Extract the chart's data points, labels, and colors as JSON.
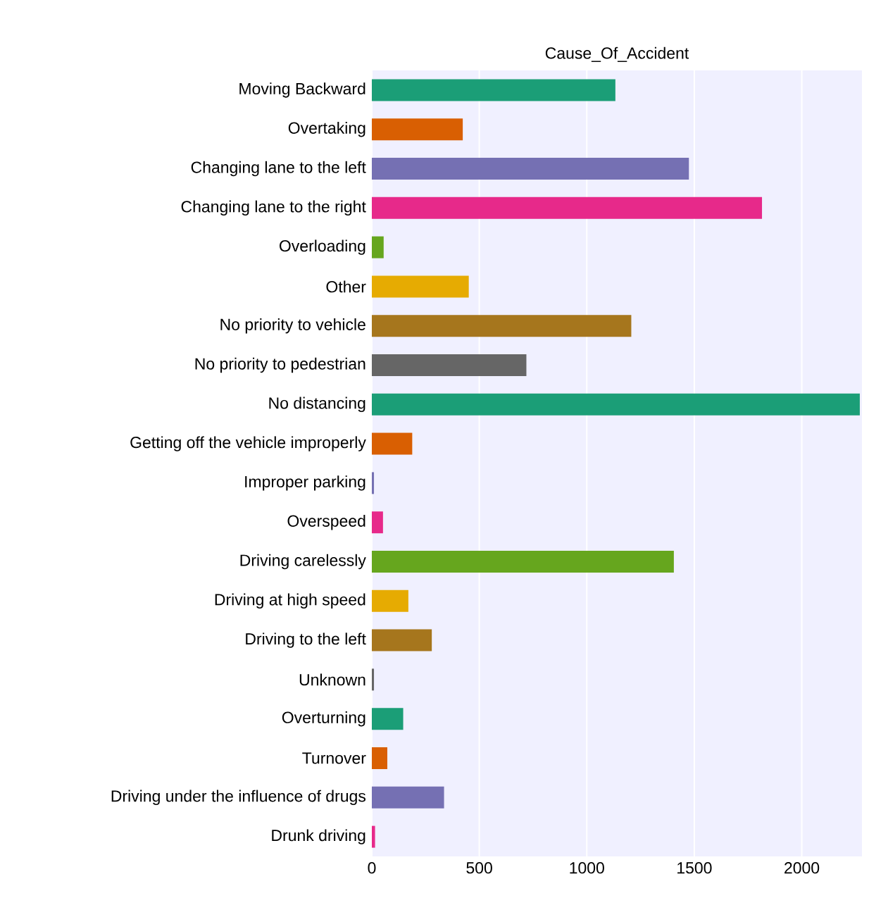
{
  "chart_data": {
    "type": "bar",
    "orientation": "horizontal",
    "title": "Cause_Of_Accident",
    "categories": [
      "Moving Backward",
      "Overtaking",
      "Changing lane to the left",
      "Changing lane to the right",
      "Overloading",
      "Other",
      "No priority to vehicle",
      "No priority to pedestrian",
      "No distancing",
      "Getting off the vehicle improperly",
      "Improper parking",
      "Overspeed",
      "Driving carelessly",
      "Driving at high speed",
      "Driving to the left",
      "Unknown",
      "Overturning",
      "Turnover",
      "Driving under the influence of drugs",
      "Drunk driving"
    ],
    "values": [
      1133,
      423,
      1475,
      1815,
      55,
      451,
      1207,
      719,
      2270,
      188,
      10,
      52,
      1405,
      170,
      279,
      10,
      146,
      72,
      336,
      15
    ],
    "colors": [
      "#1b9e77",
      "#d95f02",
      "#7570b3",
      "#e7298a",
      "#66a61e",
      "#e6ab02",
      "#a6761d",
      "#666666",
      "#1b9e77",
      "#d95f02",
      "#7570b3",
      "#e7298a",
      "#66a61e",
      "#e6ab02",
      "#a6761d",
      "#666666",
      "#1b9e77",
      "#d95f02",
      "#7570b3",
      "#e7298a"
    ],
    "xlim": [
      0,
      2280
    ],
    "xticks": [
      0,
      500,
      1000,
      1500,
      2000
    ],
    "grid": "x"
  }
}
